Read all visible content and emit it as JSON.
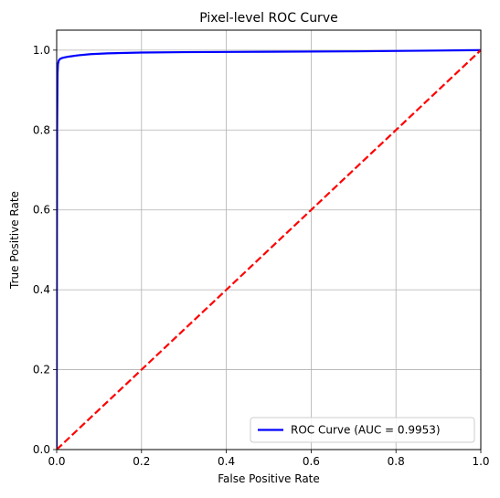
{
  "chart_data": {
    "type": "line",
    "title": "Pixel-level ROC Curve",
    "xlabel": "False Positive Rate",
    "ylabel": "True Positive Rate",
    "xlim": [
      0.0,
      1.0
    ],
    "ylim": [
      0.0,
      1.05
    ],
    "x_ticks": [
      "0.0",
      "0.2",
      "0.4",
      "0.6",
      "0.8",
      "1.0"
    ],
    "y_ticks": [
      "0.0",
      "0.2",
      "0.4",
      "0.6",
      "0.8",
      "1.0"
    ],
    "grid": true,
    "legend_position": "bottom-right",
    "series": [
      {
        "name": "ROC Curve (AUC = 0.9953)",
        "color": "#0000ff",
        "style": "solid",
        "x": [
          0.0,
          0.0005,
          0.001,
          0.002,
          0.003,
          0.005,
          0.008,
          0.012,
          0.02,
          0.03,
          0.05,
          0.08,
          0.12,
          0.2,
          0.3,
          0.5,
          0.7,
          0.9,
          1.0
        ],
        "y": [
          0.0,
          0.5,
          0.8,
          0.94,
          0.965,
          0.974,
          0.978,
          0.98,
          0.982,
          0.984,
          0.987,
          0.99,
          0.992,
          0.994,
          0.995,
          0.996,
          0.997,
          0.999,
          1.0
        ]
      },
      {
        "name": "",
        "color": "#ff0000",
        "style": "dashed",
        "x": [
          0.0,
          1.0
        ],
        "y": [
          0.0,
          1.0
        ]
      }
    ]
  }
}
